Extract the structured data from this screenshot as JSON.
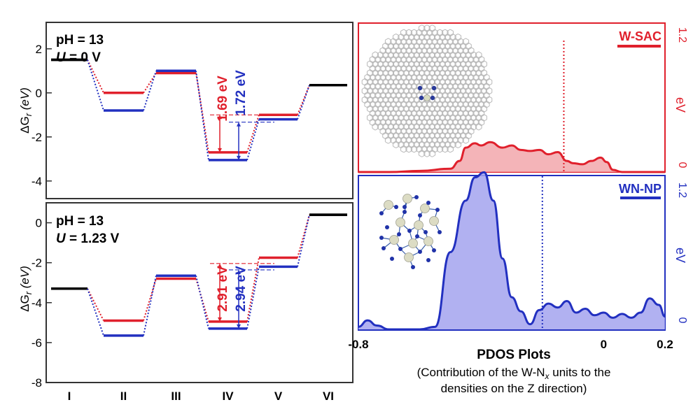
{
  "colors": {
    "red": "#e0202c",
    "blue": "#2230c0",
    "black": "#000000",
    "redFill": "#f2a7ab",
    "blueFill": "#a3a3ee"
  },
  "chart_data": [
    {
      "type": "line",
      "ylabel_main": "ΔG",
      "ylabel_sub": "r",
      "ylabel_unit": " (eV)",
      "cond_line1": "pH = 13",
      "cond_line2_var": "U",
      "cond_line2_val": " = 0 V",
      "ylim": [
        -4.8,
        3.2
      ],
      "yticks": [
        {
          "v": 2,
          "label": "2"
        },
        {
          "v": 0,
          "label": "0"
        },
        {
          "v": -2,
          "label": "-2"
        },
        {
          "v": -4,
          "label": "-4"
        }
      ],
      "series": [
        {
          "color": "red",
          "values": [
            1.5,
            0.0,
            0.9,
            -2.7,
            -1.0,
            0.35
          ]
        },
        {
          "color": "blue",
          "values": [
            1.5,
            -0.8,
            1.0,
            -3.05,
            -1.2,
            0.35
          ]
        }
      ],
      "black_steps": [
        0,
        5
      ],
      "annotations": [
        {
          "color": "red",
          "text": "1.69 eV",
          "from": -2.7,
          "to": -1.0
        },
        {
          "color": "blue",
          "text": "1.72 eV",
          "from": -3.05,
          "to": -1.33
        }
      ]
    },
    {
      "type": "line",
      "ylabel_main": "ΔG",
      "ylabel_sub": "r",
      "ylabel_unit": " (eV)",
      "cond_line1": "pH = 13",
      "cond_line2_var": "U",
      "cond_line2_val": " = 1.23 V",
      "ylim": [
        -8,
        1
      ],
      "yticks": [
        {
          "v": 0,
          "label": "0"
        },
        {
          "v": -2,
          "label": "-2"
        },
        {
          "v": -4,
          "label": "-4"
        },
        {
          "v": -6,
          "label": "-6"
        },
        {
          "v": -8,
          "label": "-8"
        }
      ],
      "categories": [
        "I",
        "II",
        "III",
        "IV",
        "V",
        "VI"
      ],
      "series": [
        {
          "color": "red",
          "values": [
            -3.3,
            -4.9,
            -2.8,
            -4.95,
            -1.75,
            0.4
          ]
        },
        {
          "color": "blue",
          "values": [
            -3.3,
            -5.65,
            -2.65,
            -5.3,
            -2.2,
            0.4
          ]
        }
      ],
      "black_steps": [
        0,
        5
      ],
      "annotations": [
        {
          "color": "red",
          "text": "2.91 eV",
          "from": -4.95,
          "to": -2.04
        },
        {
          "color": "blue",
          "text": "2.94 eV",
          "from": -5.3,
          "to": -2.36
        }
      ]
    },
    {
      "type": "area",
      "legend": "W-SAC",
      "color": "red",
      "ylabel": "eV",
      "ytick_top": "1.2",
      "ytick_bottom": "0",
      "xlim": [
        -0.8,
        0.2
      ],
      "ylim": [
        0,
        1.2
      ],
      "fermi_x": -0.13,
      "points": [
        [
          -0.8,
          0.0
        ],
        [
          -0.7,
          0.0
        ],
        [
          -0.6,
          0.01
        ],
        [
          -0.5,
          0.03
        ],
        [
          -0.47,
          0.1
        ],
        [
          -0.45,
          0.22
        ],
        [
          -0.42,
          0.26
        ],
        [
          -0.4,
          0.24
        ],
        [
          -0.37,
          0.27
        ],
        [
          -0.33,
          0.22
        ],
        [
          -0.3,
          0.24
        ],
        [
          -0.27,
          0.2
        ],
        [
          -0.24,
          0.19
        ],
        [
          -0.21,
          0.2
        ],
        [
          -0.18,
          0.16
        ],
        [
          -0.15,
          0.18
        ],
        [
          -0.12,
          0.1
        ],
        [
          -0.1,
          0.08
        ],
        [
          -0.07,
          0.07
        ],
        [
          -0.04,
          0.1
        ],
        [
          -0.01,
          0.13
        ],
        [
          0.01,
          0.09
        ],
        [
          0.03,
          0.02
        ],
        [
          0.06,
          0.0
        ],
        [
          0.2,
          0.0
        ]
      ]
    },
    {
      "type": "area",
      "legend": "WN-NP",
      "color": "blue",
      "ylabel": "eV",
      "ytick_top": "1.2",
      "ytick_bottom": "0",
      "xlim": [
        -0.8,
        0.2
      ],
      "ylim": [
        0,
        1.2
      ],
      "fermi_x": -0.2,
      "xticks": [
        {
          "v": -0.8,
          "label": "-0.8"
        },
        {
          "v": 0,
          "label": "0"
        },
        {
          "v": 0.2,
          "label": "0.2"
        }
      ],
      "points": [
        [
          -0.8,
          0.02
        ],
        [
          -0.77,
          0.07
        ],
        [
          -0.74,
          0.03
        ],
        [
          -0.7,
          0.0
        ],
        [
          -0.6,
          0.0
        ],
        [
          -0.55,
          0.02
        ],
        [
          -0.5,
          0.6
        ],
        [
          -0.45,
          1.0
        ],
        [
          -0.42,
          1.18
        ],
        [
          -0.39,
          1.22
        ],
        [
          -0.36,
          1.0
        ],
        [
          -0.33,
          0.55
        ],
        [
          -0.3,
          0.25
        ],
        [
          -0.27,
          0.14
        ],
        [
          -0.24,
          0.04
        ],
        [
          -0.21,
          0.15
        ],
        [
          -0.18,
          0.2
        ],
        [
          -0.15,
          0.17
        ],
        [
          -0.12,
          0.22
        ],
        [
          -0.09,
          0.13
        ],
        [
          -0.06,
          0.16
        ],
        [
          -0.03,
          0.11
        ],
        [
          0.0,
          0.13
        ],
        [
          0.03,
          0.09
        ],
        [
          0.06,
          0.12
        ],
        [
          0.09,
          0.09
        ],
        [
          0.12,
          0.13
        ],
        [
          0.15,
          0.24
        ],
        [
          0.18,
          0.19
        ],
        [
          0.2,
          0.1
        ]
      ]
    }
  ],
  "captions": {
    "title": "PDOS Plots",
    "line1_a": "(Contribution of the W-N",
    "line1_sub": "x",
    "line1_b": " units to the",
    "line2": "densities on the Z direction)"
  }
}
